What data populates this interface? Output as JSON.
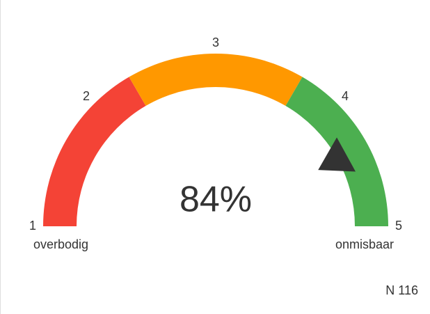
{
  "chart_data": {
    "type": "gauge",
    "ylim": [
      1,
      5
    ],
    "yticks": [
      1,
      2,
      3,
      4,
      5
    ],
    "bands": [
      {
        "from": 1,
        "to": 2.33,
        "color": "#f44336"
      },
      {
        "from": 2.33,
        "to": 3.67,
        "color": "#ff9800"
      },
      {
        "from": 3.67,
        "to": 5,
        "color": "#4caf50"
      }
    ],
    "values": [
      84
    ],
    "value_labels": [
      "84%"
    ],
    "pointer_color": "#333333",
    "min_label": "overbodig",
    "max_label": "onmisbaar",
    "annotation": "N 116"
  }
}
